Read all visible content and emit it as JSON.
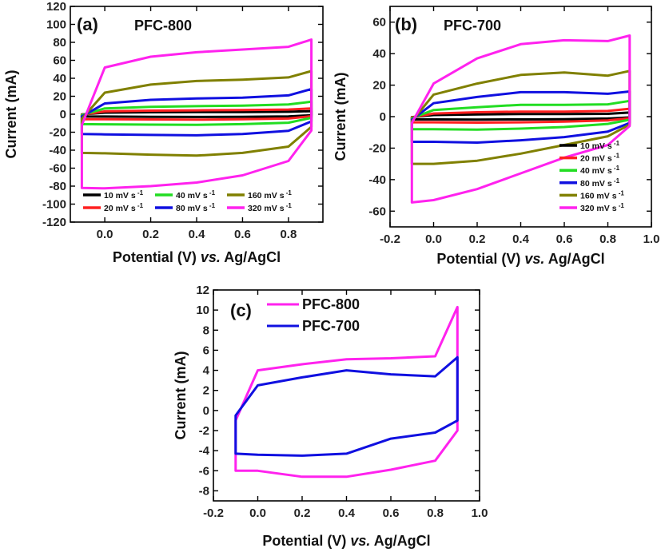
{
  "chart_data": [
    {
      "id": "a",
      "type": "line",
      "panel_label": "(a)",
      "title": "PFC-800",
      "xlabel": "Potential (V)",
      "xlabel_italic": "vs.",
      "xlabel_suffix": "Ag/AgCl",
      "ylabel": "Current (mA)",
      "xlim": [
        -0.15,
        0.95
      ],
      "ylim": [
        -120,
        120
      ],
      "xticks": [
        0.0,
        0.2,
        0.4,
        0.6,
        0.8
      ],
      "yticks": [
        -120,
        -100,
        -80,
        -60,
        -40,
        -20,
        0,
        20,
        40,
        60,
        80,
        100,
        120
      ],
      "legend_columns": 3,
      "series": [
        {
          "name": "10 mV s",
          "sup": "-1",
          "color": "#000000",
          "top": [
            -0.2,
            1.8,
            2.2,
            2.4,
            2.5,
            2.8,
            3.5
          ],
          "bottom": [
            -2.5,
            -2.6,
            -2.8,
            -3.0,
            -2.8,
            -2.4,
            -1.2
          ]
        },
        {
          "name": "20 mV s",
          "sup": "-1",
          "color": "#ff2020",
          "top": [
            -0.5,
            3.2,
            4.0,
            4.4,
            4.6,
            5.2,
            6.5
          ],
          "bottom": [
            -5.5,
            -5.6,
            -5.8,
            -6.0,
            -5.6,
            -4.8,
            -2.2
          ]
        },
        {
          "name": "40 mV s",
          "sup": "-1",
          "color": "#22dd22",
          "top": [
            -1.0,
            6.5,
            8.2,
            9.0,
            9.6,
            10.8,
            14.0
          ],
          "bottom": [
            -11.0,
            -11.2,
            -11.6,
            -11.8,
            -11.0,
            -9.4,
            -4.0
          ]
        },
        {
          "name": "80 mV s",
          "sup": "-1",
          "color": "#1010e0",
          "top": [
            -2.5,
            12.0,
            16.0,
            17.5,
            18.5,
            21.0,
            28.0
          ],
          "bottom": [
            -22.0,
            -22.4,
            -23.0,
            -23.5,
            -22.0,
            -18.5,
            -8.0
          ]
        },
        {
          "name": "160 mV s",
          "sup": "-1",
          "color": "#808000",
          "top": [
            -5.0,
            24.0,
            33.0,
            37.0,
            38.5,
            41.0,
            48.0
          ],
          "bottom": [
            -43.0,
            -43.5,
            -45.0,
            -46.0,
            -43.0,
            -36.0,
            -14.0
          ]
        },
        {
          "name": "320 mV s",
          "sup": "-1",
          "color": "#ff22ee",
          "top": [
            -12.0,
            52.0,
            64.0,
            69.0,
            72.0,
            75.0,
            83.0
          ],
          "bottom": [
            -82.0,
            -82.5,
            -80.0,
            -76.0,
            -68.0,
            -52.0,
            -18.0
          ]
        }
      ]
    },
    {
      "id": "b",
      "type": "line",
      "panel_label": "(b)",
      "title": "PFC-700",
      "xlabel": "Potential (V)",
      "xlabel_italic": "vs.",
      "xlabel_suffix": "Ag/AgCl",
      "ylabel": "Current (mA)",
      "xlim": [
        -0.2,
        1.0
      ],
      "ylim": [
        -70,
        70
      ],
      "xticks": [
        -0.2,
        0.0,
        0.2,
        0.4,
        0.6,
        0.8,
        1.0
      ],
      "yticks": [
        -60,
        -40,
        -20,
        0,
        20,
        40,
        60
      ],
      "legend_columns": 1,
      "series": [
        {
          "name": "10 mV s",
          "sup": "-1",
          "color": "#000000",
          "top": [
            -0.3,
            1.0,
            1.4,
            1.6,
            1.6,
            1.8,
            2.6
          ],
          "bottom": [
            -1.8,
            -1.8,
            -1.9,
            -1.8,
            -1.6,
            -1.2,
            -0.5
          ]
        },
        {
          "name": "20 mV s",
          "sup": "-1",
          "color": "#ff2020",
          "top": [
            -0.5,
            2.0,
            2.8,
            3.2,
            3.2,
            3.6,
            5.0
          ],
          "bottom": [
            -3.6,
            -3.6,
            -3.8,
            -3.6,
            -3.2,
            -2.4,
            -1.0
          ]
        },
        {
          "name": "40 mV s",
          "sup": "-1",
          "color": "#22dd22",
          "top": [
            -1.0,
            4.2,
            6.0,
            7.5,
            7.5,
            7.8,
            10.0
          ],
          "bottom": [
            -8.0,
            -8.0,
            -8.2,
            -7.6,
            -6.6,
            -4.6,
            -2.0
          ]
        },
        {
          "name": "80 mV s",
          "sup": "-1",
          "color": "#1010e0",
          "top": [
            -2.0,
            8.5,
            12.5,
            15.5,
            15.5,
            14.5,
            16.0
          ],
          "bottom": [
            -16.0,
            -16.0,
            -16.5,
            -15.0,
            -13.0,
            -9.5,
            -4.0
          ]
        },
        {
          "name": "160 mV s",
          "sup": "-1",
          "color": "#808000",
          "top": [
            -3.0,
            14.0,
            21.0,
            26.5,
            28.0,
            26.0,
            29.0
          ],
          "bottom": [
            -30.0,
            -30.0,
            -28.0,
            -23.5,
            -18.0,
            -12.5,
            -5.0
          ]
        },
        {
          "name": "320 mV s",
          "sup": "-1",
          "color": "#ff22ee",
          "top": [
            -4.0,
            21.0,
            37.0,
            46.0,
            48.5,
            48.0,
            51.5
          ],
          "bottom": [
            -54.5,
            -53.0,
            -46.0,
            -36.0,
            -26.0,
            -18.0,
            -6.0
          ]
        }
      ]
    },
    {
      "id": "c",
      "type": "line",
      "panel_label": "(c)",
      "title": "",
      "xlabel": "Potential (V)",
      "xlabel_italic": "vs.",
      "xlabel_suffix": "Ag/AgCl",
      "ylabel": "Current (mA)",
      "xlim": [
        -0.2,
        1.0
      ],
      "ylim": [
        -9,
        12
      ],
      "xticks": [
        -0.2,
        0.0,
        0.2,
        0.4,
        0.6,
        0.8,
        1.0
      ],
      "yticks": [
        -8,
        -6,
        -4,
        -2,
        0,
        2,
        4,
        6,
        8,
        10,
        12
      ],
      "legend_columns": 1,
      "series": [
        {
          "name": "PFC-800",
          "sup": "",
          "color": "#ff22ee",
          "top": [
            -1.0,
            4.0,
            4.6,
            5.1,
            5.2,
            5.4,
            10.3
          ],
          "bottom": [
            -6.0,
            -6.0,
            -6.6,
            -6.6,
            -5.9,
            -5.0,
            -2.0
          ]
        },
        {
          "name": "PFC-700",
          "sup": "",
          "color": "#1010e0",
          "top": [
            -0.5,
            2.5,
            3.3,
            4.0,
            3.6,
            3.4,
            5.3
          ],
          "bottom": [
            -4.3,
            -4.4,
            -4.5,
            -4.3,
            -2.8,
            -2.2,
            -1.0
          ]
        }
      ]
    }
  ]
}
